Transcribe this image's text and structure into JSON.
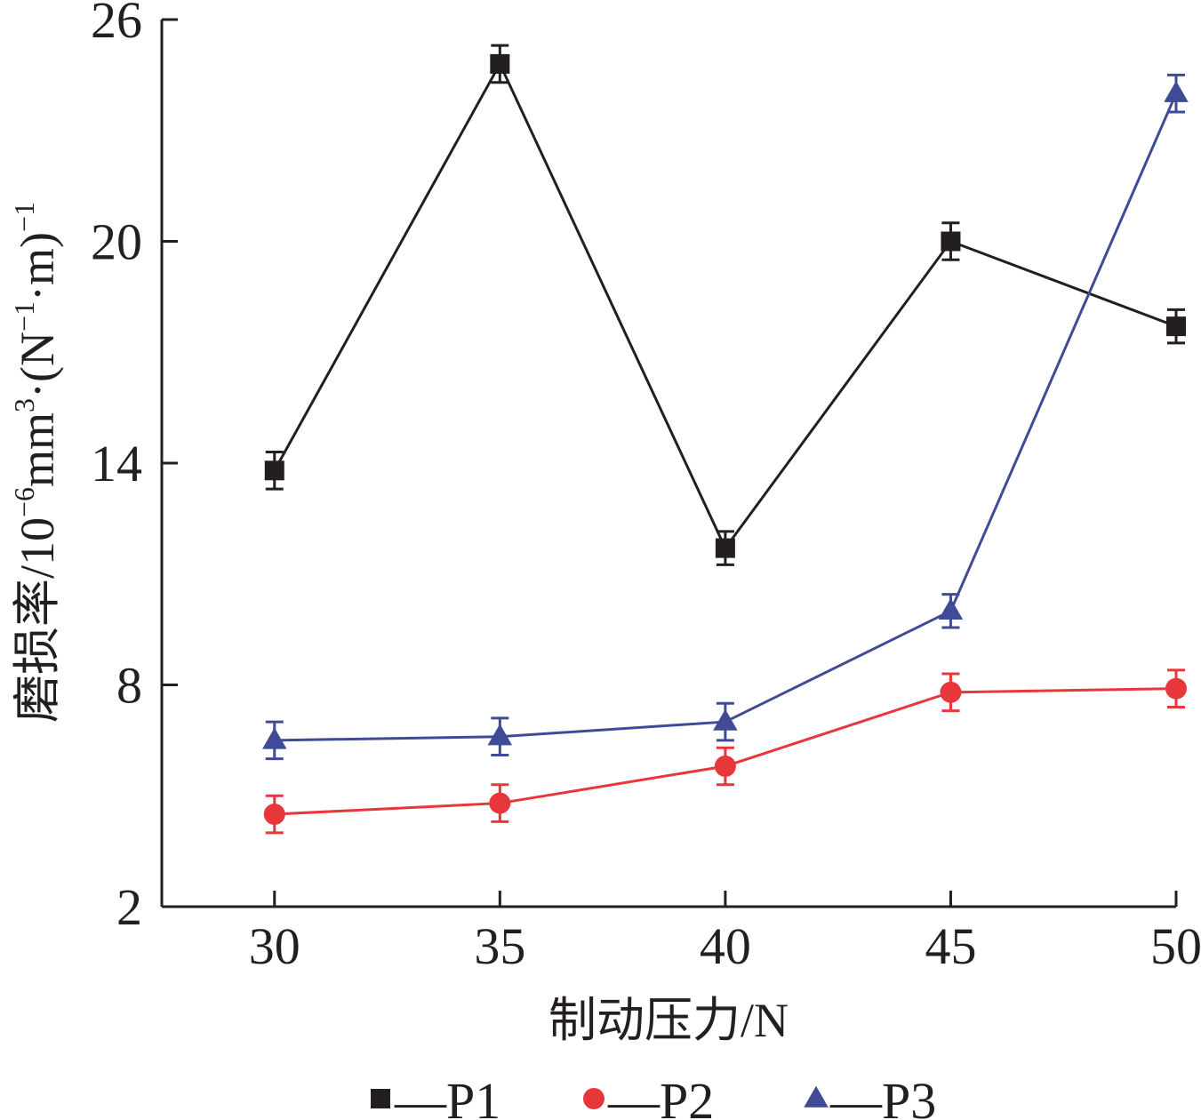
{
  "chart_data": {
    "type": "line",
    "title": "",
    "xlabel": "制动压力/N",
    "ylabel": {
      "main": "磨损率/10",
      "exp1": "−6",
      "mid1": "mm",
      "exp2": "3",
      "mid2": "·(N",
      "exp3": "−1",
      "mid3": "·m)",
      "exp4": "−1"
    },
    "x": [
      30,
      35,
      40,
      45,
      50
    ],
    "xlim": [
      27.5,
      50
    ],
    "ylim": [
      2,
      26
    ],
    "x_ticks": [
      "30",
      "35",
      "40",
      "45",
      "50"
    ],
    "y_ticks": [
      "2",
      "8",
      "14",
      "20",
      "26"
    ],
    "grid": false,
    "legend_position": "bottom",
    "series": [
      {
        "name": "P1",
        "color": "#231f20",
        "marker": "square",
        "values": [
          13.8,
          24.8,
          11.7,
          20.0,
          17.7
        ],
        "errors": [
          0.5,
          0.5,
          0.45,
          0.5,
          0.45
        ]
      },
      {
        "name": "P2",
        "color": "#e8373a",
        "marker": "circle",
        "values": [
          4.5,
          4.8,
          5.8,
          7.8,
          7.9
        ],
        "errors": [
          0.5,
          0.5,
          0.5,
          0.5,
          0.5
        ]
      },
      {
        "name": "P3",
        "color": "#3f4b96",
        "marker": "triangle",
        "values": [
          6.5,
          6.6,
          7.0,
          10.0,
          24.0
        ],
        "errors": [
          0.5,
          0.5,
          0.5,
          0.45,
          0.5
        ]
      }
    ],
    "legend_prefix": "—"
  }
}
